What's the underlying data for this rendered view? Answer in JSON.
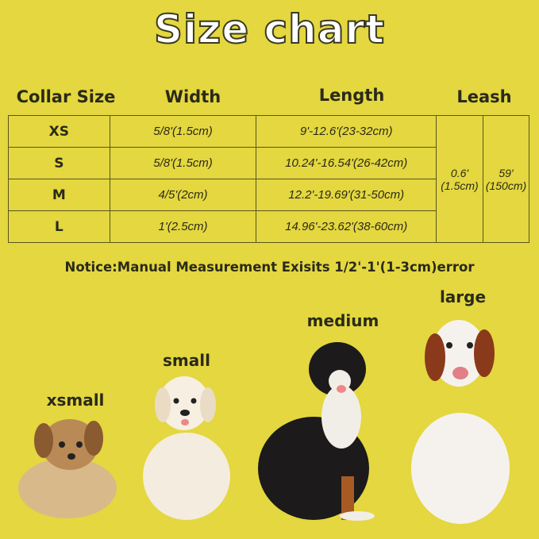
{
  "title": "Size chart",
  "headers": {
    "collar_size": "Collar Size",
    "width": "Width",
    "length": "Length",
    "leash": "Leash"
  },
  "rows": [
    {
      "size": "XS",
      "width": "5/8'(1.5cm)",
      "length": "9'-12.6'(23-32cm)"
    },
    {
      "size": "S",
      "width": "5/8'(1.5cm)",
      "length": "10.24'-16.54'(26-42cm)"
    },
    {
      "size": "M",
      "width": "4/5'(2cm)",
      "length": "12.2'-19.69'(31-50cm)"
    },
    {
      "size": "L",
      "width": "1'(2.5cm)",
      "length": "14.96'-23.62'(38-60cm)"
    }
  ],
  "leash": {
    "width": "0.6'\n(1.5cm)",
    "length": "59'\n(150cm)"
  },
  "notice": "Notice:Manual Measurement Exisits 1/2'-1'(1-3cm)error",
  "dogs": [
    {
      "label": "xsmall"
    },
    {
      "label": "small"
    },
    {
      "label": "medium"
    },
    {
      "label": "large"
    }
  ],
  "colors": {
    "background": "#e4d73f",
    "text": "#2a2a1a",
    "title": "#ffffff"
  }
}
